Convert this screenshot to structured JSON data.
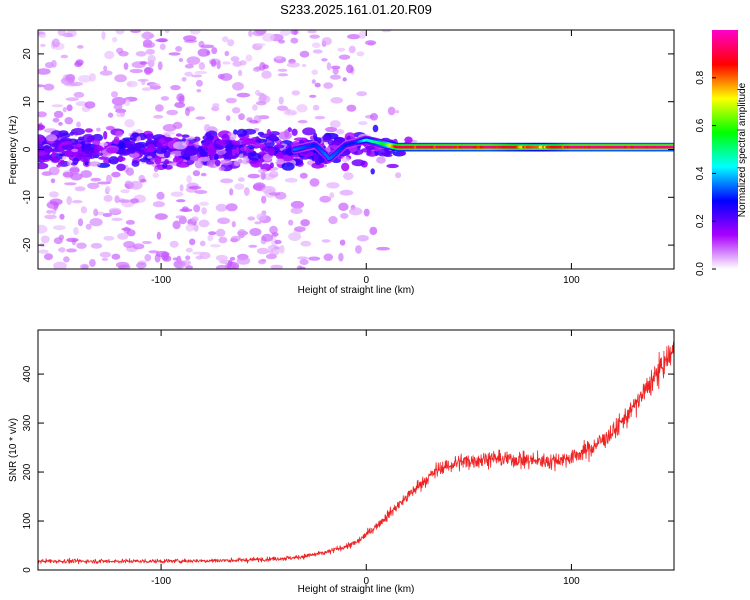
{
  "title": "S233.2025.161.01.20.R09",
  "chart_data": [
    {
      "type": "heatmap",
      "xlabel": "Height of straight line (km)",
      "ylabel": "Frequency (Hz)",
      "xlim": [
        -160,
        150
      ],
      "ylim": [
        -25,
        25
      ],
      "xticks": [
        -100,
        0,
        100
      ],
      "yticks": [
        -20,
        -10,
        0,
        10,
        20
      ],
      "colorbar": {
        "label": "Normalized spectral amplitude",
        "range": [
          0,
          1
        ],
        "ticks": [
          "0.0",
          "0.2",
          "0.4",
          "0.6",
          "0.8"
        ],
        "colormap": [
          "#ffffff",
          "#a800ff",
          "#0000ff",
          "#00ffff",
          "#00ff00",
          "#ffff00",
          "#ff0000",
          "#ff00cc"
        ]
      },
      "ridge": [
        {
          "x": -35,
          "freq": 0,
          "amp": 0.35
        },
        {
          "x": -25,
          "freq": 1,
          "amp": 0.3
        },
        {
          "x": -20,
          "freq": -1,
          "amp": 0.35
        },
        {
          "x": -18,
          "freq": -2,
          "amp": 0.35
        },
        {
          "x": -10,
          "freq": 1,
          "amp": 0.3
        },
        {
          "x": -5,
          "freq": 1.5,
          "amp": 0.3
        },
        {
          "x": 0,
          "freq": 2,
          "amp": 0.45
        },
        {
          "x": 5,
          "freq": 1.5,
          "amp": 0.5
        },
        {
          "x": 10,
          "freq": 1,
          "amp": 0.6
        },
        {
          "x": 15,
          "freq": 0.5,
          "amp": 0.9
        },
        {
          "x": 60,
          "freq": 0.5,
          "amp": 0.95
        },
        {
          "x": 85,
          "freq": 0.5,
          "amp": 0.8
        },
        {
          "x": 100,
          "freq": 0.5,
          "amp": 0.95
        },
        {
          "x": 150,
          "freq": 0.5,
          "amp": 0.95
        }
      ]
    },
    {
      "type": "line",
      "xlabel": "Height of straight line (km)",
      "ylabel": "SNR (10 * v/v)",
      "xlim": [
        -160,
        150
      ],
      "ylim": [
        0,
        490
      ],
      "xticks": [
        -100,
        0,
        100
      ],
      "yticks": [
        0,
        100,
        200,
        300,
        400
      ],
      "color": "#ee2222",
      "trend": [
        {
          "x": -160,
          "y": 18
        },
        {
          "x": -130,
          "y": 18
        },
        {
          "x": -100,
          "y": 18
        },
        {
          "x": -60,
          "y": 20
        },
        {
          "x": -35,
          "y": 25
        },
        {
          "x": -20,
          "y": 35
        },
        {
          "x": -5,
          "y": 55
        },
        {
          "x": 5,
          "y": 90
        },
        {
          "x": 15,
          "y": 130
        },
        {
          "x": 25,
          "y": 170
        },
        {
          "x": 35,
          "y": 205
        },
        {
          "x": 45,
          "y": 220
        },
        {
          "x": 60,
          "y": 228
        },
        {
          "x": 75,
          "y": 225
        },
        {
          "x": 90,
          "y": 222
        },
        {
          "x": 100,
          "y": 230
        },
        {
          "x": 110,
          "y": 250
        },
        {
          "x": 120,
          "y": 280
        },
        {
          "x": 130,
          "y": 330
        },
        {
          "x": 140,
          "y": 390
        },
        {
          "x": 150,
          "y": 450
        }
      ]
    }
  ]
}
